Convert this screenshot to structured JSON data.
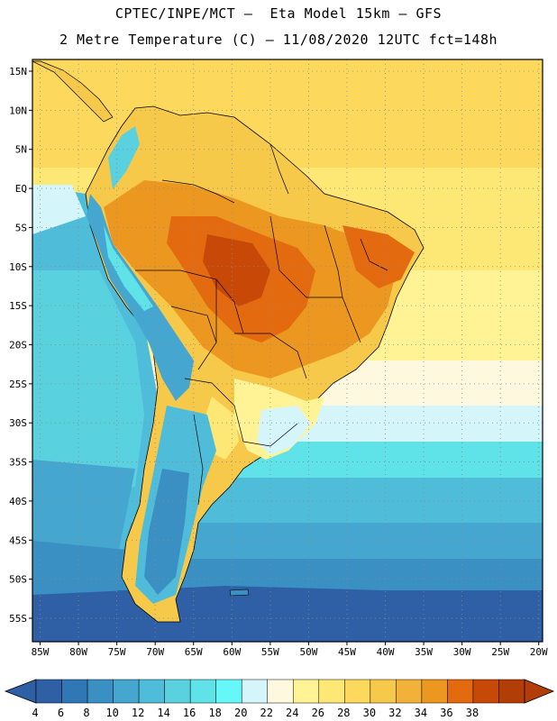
{
  "header": {
    "line1": "CPTEC/INPE/MCT –  Eta Model 15km – GFS",
    "line2": "2 Metre Temperature (C) – 11/08/2020 12UTC fct=148h"
  },
  "axes": {
    "lat_labels": [
      "15N",
      "10N",
      "5N",
      "EQ",
      "5S",
      "10S",
      "15S",
      "20S",
      "25S",
      "30S",
      "35S",
      "40S",
      "45S",
      "50S",
      "55S"
    ],
    "lat_values": [
      15,
      10,
      5,
      0,
      -5,
      -10,
      -15,
      -20,
      -25,
      -30,
      -35,
      -40,
      -45,
      -50,
      -55
    ],
    "lon_labels": [
      "85W",
      "80W",
      "75W",
      "70W",
      "65W",
      "60W",
      "55W",
      "50W",
      "45W",
      "40W",
      "35W",
      "30W",
      "25W",
      "20W"
    ],
    "lon_values": [
      -85,
      -80,
      -75,
      -70,
      -65,
      -60,
      -55,
      -50,
      -45,
      -40,
      -35,
      -30,
      -25,
      -20
    ],
    "lat_range": [
      -58,
      16.5
    ],
    "lon_range": [
      -86,
      -19.5
    ]
  },
  "colorbar": {
    "labels": [
      "4",
      "6",
      "8",
      "10",
      "12",
      "14",
      "16",
      "18",
      "20",
      "22",
      "24",
      "26",
      "28",
      "30",
      "32",
      "34",
      "36",
      "38"
    ],
    "colors": [
      "#2f5fa5",
      "#2f78b5",
      "#3a8fc3",
      "#45a6cf",
      "#4fbdd9",
      "#5ad1df",
      "#5fe3e8",
      "#66f8f8",
      "#d4f6fb",
      "#fef8de",
      "#fff396",
      "#fee875",
      "#fcd95d",
      "#f6c94a",
      "#f2b23a",
      "#ec971f",
      "#e46a10",
      "#c84808",
      "#b33d06"
    ],
    "under_color": "#2f5fa5",
    "over_color": "#b33d06"
  },
  "legend": {
    "cold": "#3a6db0",
    "ocean_south": "#4a86c2",
    "ocean_mid": "#4fbdd9",
    "ocean_warm": "#fff396",
    "ocean_trop": "#fcd95d",
    "land_hot": "#e46a10",
    "land_warm": "#f2b23a",
    "land_mild": "#fee875",
    "andes_cold": "#2f78b5",
    "patagonia": "#4fbdd9"
  }
}
